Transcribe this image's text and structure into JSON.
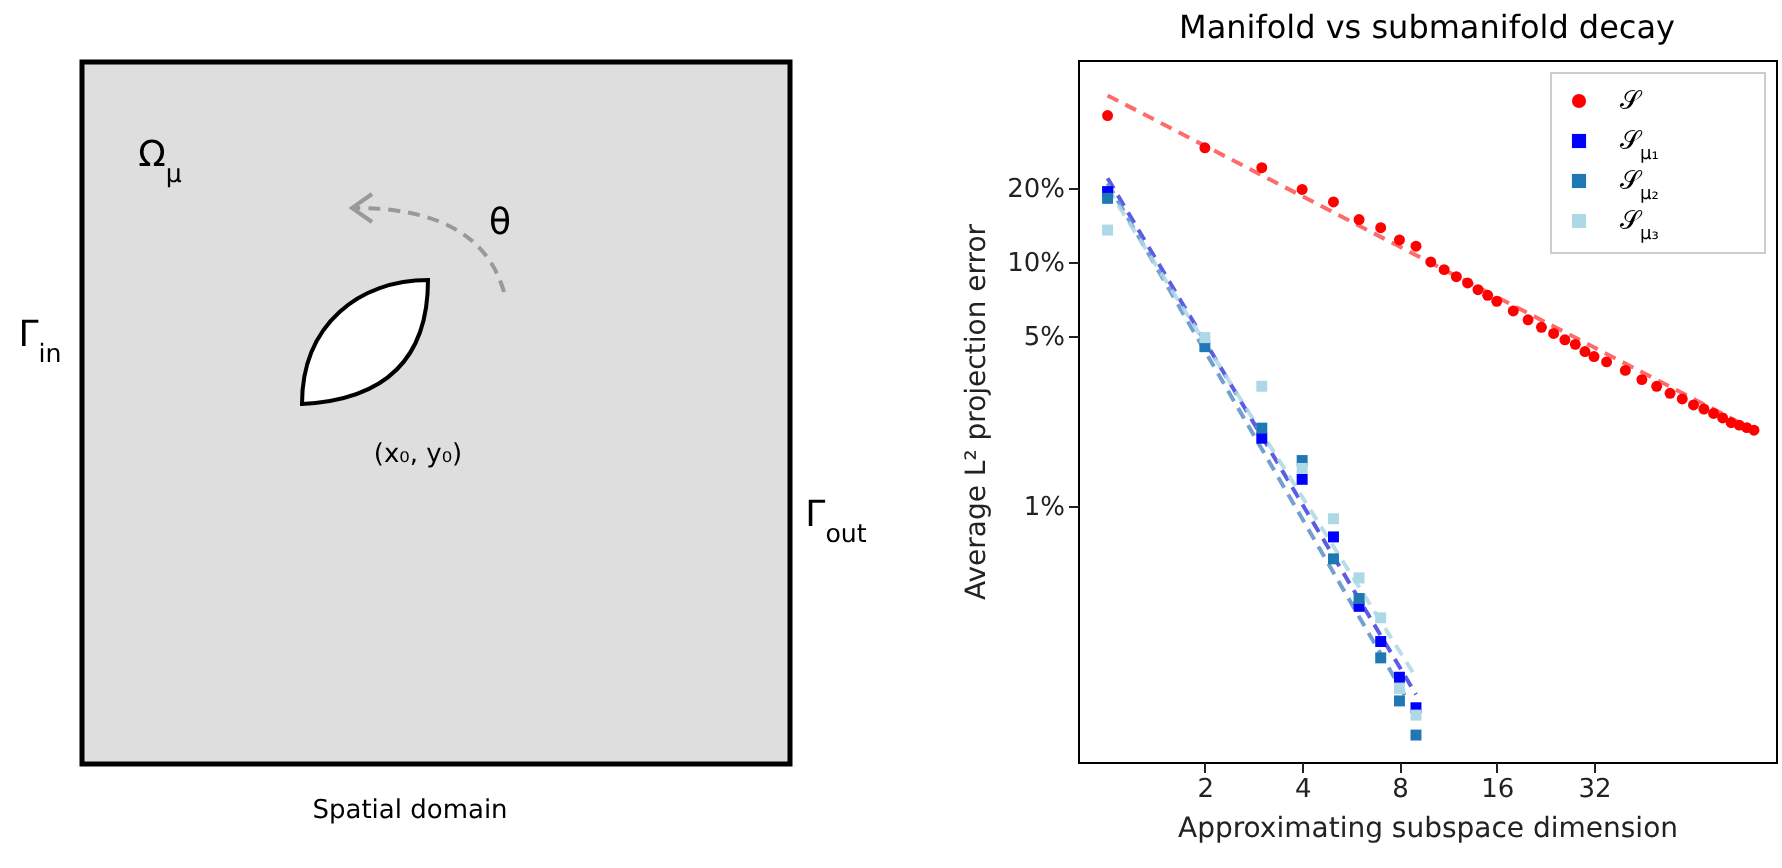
{
  "chart_data": [
    {
      "type": "other",
      "xlabel": "Spatial domain",
      "annotations": [
        "Ω$_{μ}$",
        "θ",
        "Γ$_{in}$",
        "(x₀, y₀)",
        "Γ$_{out}$"
      ]
    },
    {
      "type": "scatter",
      "title": "Manifold vs submanifold decay",
      "xlabel": "Approximating subspace dimension",
      "ylabel": "Average L² projection error",
      "log": "xy",
      "xlim": [
        0.81,
        117
      ],
      "ylim": [
        0.09,
        67
      ],
      "xticks": [
        2,
        4,
        8,
        16,
        32
      ],
      "yticks": [
        {
          "value": 1,
          "label": "1%"
        },
        {
          "value": 5,
          "label": "5%"
        },
        {
          "value": 10,
          "label": "10%"
        },
        {
          "value": 20,
          "label": "20%"
        }
      ],
      "legend": "top right",
      "series": [
        {
          "type": "line",
          "color": "#ff5050",
          "line_style": "dashed",
          "x": [
            1,
            100
          ],
          "values": [
            48,
            2.05
          ]
        },
        {
          "type": "line",
          "color": "#4040e0",
          "line_style": "dashed",
          "x": [
            1,
            9
          ],
          "values": [
            22,
            0.17
          ]
        },
        {
          "type": "line",
          "color": "#5a8fc8",
          "line_style": "dashed",
          "x": [
            1,
            8.5
          ],
          "values": [
            21,
            0.16
          ]
        },
        {
          "type": "line",
          "color": "#add8e6",
          "line_style": "dashed",
          "x": [
            1,
            9
          ],
          "values": [
            20,
            0.2
          ]
        },
        {
          "type": "scatter",
          "name": "𝒮",
          "color": "#ff0000",
          "marker": "circle",
          "x": [
            1,
            2,
            3,
            4,
            5,
            6,
            7,
            8,
            9,
            10,
            11,
            12,
            13,
            14,
            15,
            16,
            18,
            20,
            22,
            24,
            26,
            28,
            30,
            32,
            35,
            40,
            45,
            50,
            55,
            60,
            65,
            70,
            75,
            80,
            85,
            90,
            95,
            100
          ],
          "values": [
            39.7,
            29.3,
            24.3,
            19.8,
            17.6,
            14.9,
            13.8,
            12.3,
            11.6,
            10.0,
            9.3,
            8.7,
            8.2,
            7.7,
            7.3,
            6.9,
            6.3,
            5.8,
            5.4,
            5.1,
            4.8,
            4.6,
            4.3,
            4.1,
            3.9,
            3.6,
            3.3,
            3.1,
            2.9,
            2.75,
            2.6,
            2.5,
            2.4,
            2.3,
            2.2,
            2.15,
            2.1,
            2.05
          ]
        },
        {
          "type": "scatter",
          "name": "𝒮$_{μ₁}$",
          "color": "#0000ff",
          "marker": "square",
          "x": [
            1,
            3,
            4,
            5,
            6,
            7,
            8,
            9
          ],
          "values": [
            19.4,
            1.9,
            1.29,
            0.75,
            0.39,
            0.28,
            0.2,
            0.15
          ]
        },
        {
          "type": "scatter",
          "name": "𝒮$_{μ₂}$",
          "color": "#1f77b4",
          "marker": "square",
          "x": [
            1,
            2,
            3,
            4,
            5,
            6,
            7,
            8,
            9
          ],
          "values": [
            18.2,
            4.5,
            2.09,
            1.54,
            0.61,
            0.42,
            0.24,
            0.16,
            0.116
          ]
        },
        {
          "type": "scatter",
          "name": "𝒮$_{μ₃}$",
          "color": "#add8e6",
          "marker": "square",
          "x": [
            1,
            2,
            3,
            4,
            5,
            6,
            7,
            8,
            9
          ],
          "values": [
            13.5,
            4.9,
            3.1,
            1.43,
            0.89,
            0.51,
            0.35,
            0.18,
            0.14
          ]
        }
      ]
    }
  ]
}
